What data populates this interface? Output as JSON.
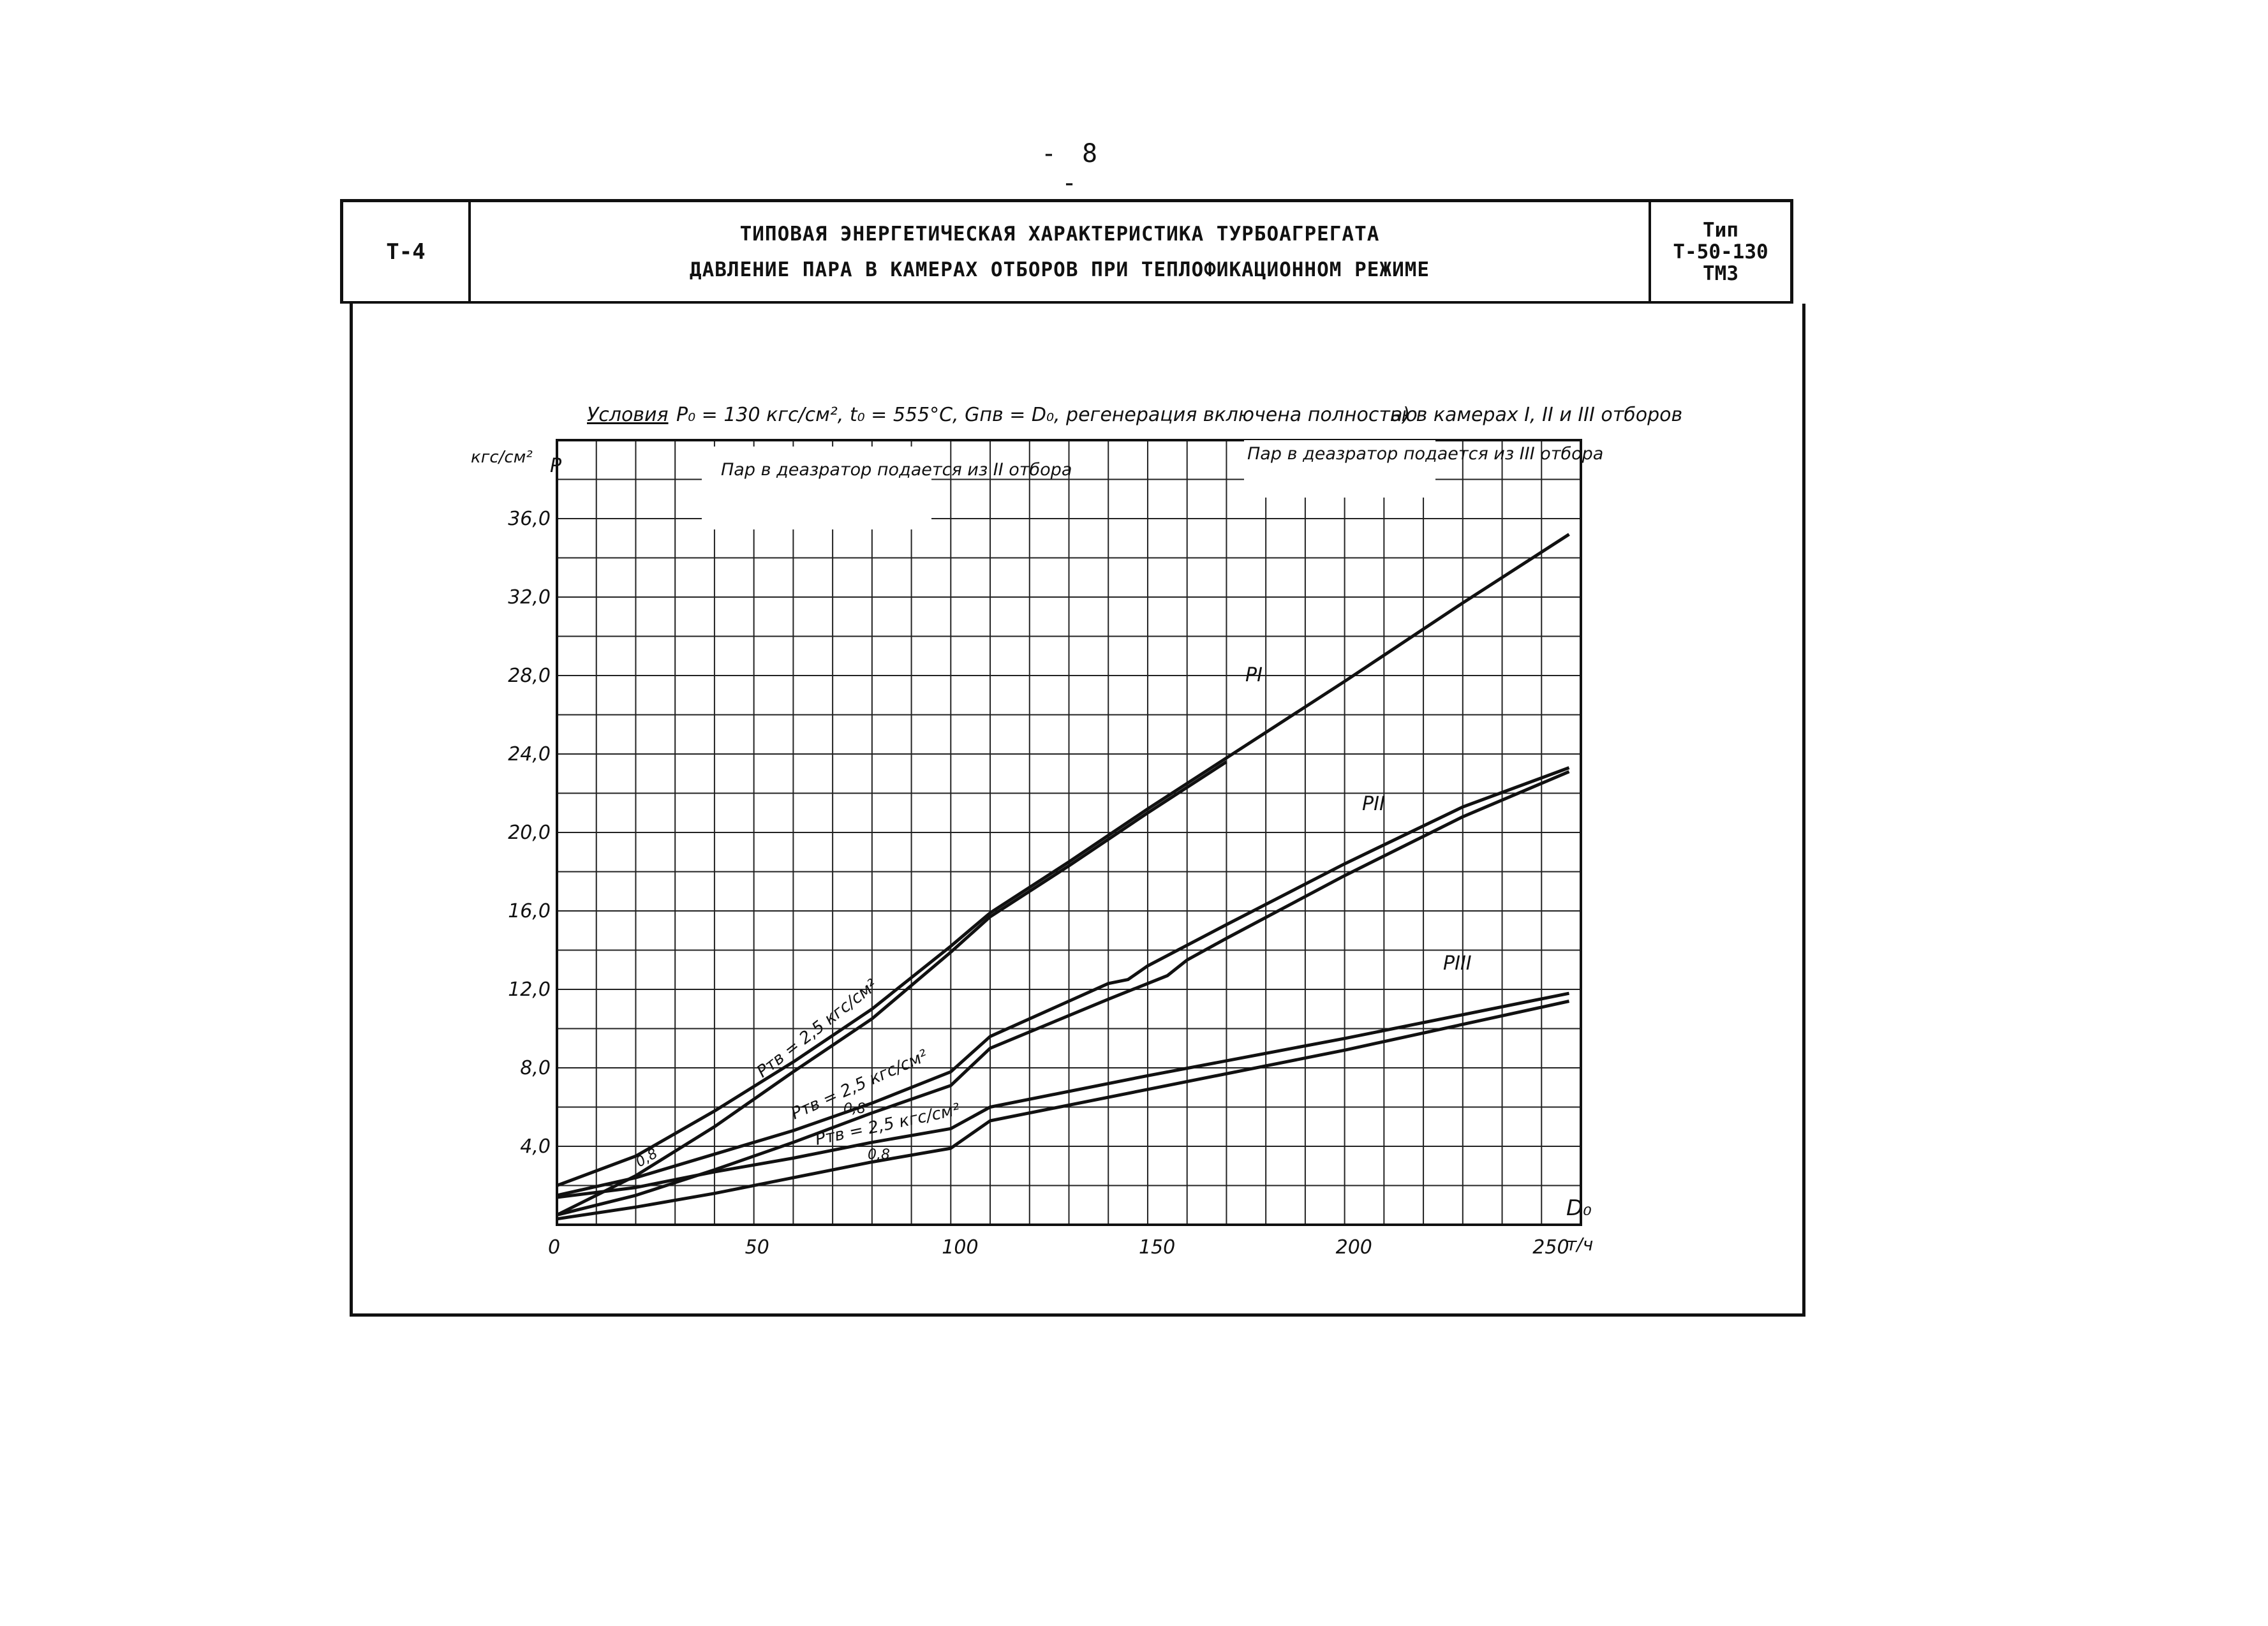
{
  "page": {
    "number": "- 8 -"
  },
  "header": {
    "code": "Т-4",
    "title_line1": "ТИПОВАЯ ЭНЕРГЕТИЧЕСКАЯ ХАРАКТЕРИСТИКА ТУРБОАГРЕГАТА",
    "title_line2": "ДАВЛЕНИЕ ПАРА В КАМЕРАХ ОТБОРОВ ПРИ ТЕПЛОФИКАЦИОННОМ РЕЖИМЕ",
    "type_label": "Тип",
    "type_model": "Т-50-130",
    "type_plant": "ТМЗ"
  },
  "chart_data": {
    "type": "line",
    "conditions_label": "Условия",
    "conditions_text": "P₀ = 130 кгс/см², t₀ = 555°С, Gпв = D₀, регенерация включена полностью",
    "panel_label": "а) в камерах I, II и III отборов",
    "ylabel": "P",
    "yunit": "кгс/см²",
    "xlabel": "D₀",
    "xunit": "т/ч",
    "xlim": [
      0,
      260
    ],
    "ylim": [
      0,
      40
    ],
    "x_ticks": [
      "0",
      "50",
      "100",
      "150",
      "200",
      "250"
    ],
    "x_tick_values": [
      0,
      50,
      100,
      150,
      200,
      250
    ],
    "y_ticks": [
      "4,0",
      "8,0",
      "12,0",
      "16,0",
      "20,0",
      "24,0",
      "28,0",
      "32,0",
      "36,0"
    ],
    "y_tick_values": [
      4,
      8,
      12,
      16,
      20,
      24,
      28,
      32,
      36
    ],
    "grid": true,
    "annotations": [
      {
        "text": "Пар в деазратор подается из II отбора",
        "range": [
          0,
          100
        ]
      },
      {
        "text": "Пар в деазратор подается из III отбора",
        "range": [
          140,
          257
        ]
      }
    ],
    "series_labels": {
      "p1": "PI",
      "p2": "PII",
      "p3": "PIII",
      "ptv_25_a": "Pтв = 2,5 кгс/см²",
      "ptv_25_b": "Pтв = 2,5 кгс/см²",
      "ptv_25_c": "Pтв = 2,5 кгс/см²",
      "ptv_08_a": "0,8",
      "ptv_08_b": "0,8",
      "ptv_08_c": "0,8"
    },
    "series": [
      {
        "key": "p1_upper",
        "x": [
          0,
          20,
          40,
          60,
          80,
          100,
          110,
          130,
          150,
          170,
          200,
          230,
          257
        ],
        "y": [
          2.0,
          3.5,
          5.8,
          8.3,
          11.0,
          14.2,
          15.9,
          18.5,
          21.2,
          23.8,
          27.7,
          31.7,
          35.2
        ]
      },
      {
        "key": "p1_lower",
        "x": [
          0,
          20,
          40,
          60,
          80,
          100,
          110,
          130,
          150,
          170
        ],
        "y": [
          0.5,
          2.5,
          5.0,
          7.8,
          10.5,
          13.9,
          15.7,
          18.3,
          21.0,
          23.6
        ]
      },
      {
        "key": "p2_upper",
        "x": [
          0,
          20,
          40,
          60,
          80,
          100,
          110,
          140,
          145,
          150,
          170,
          200,
          230,
          257
        ],
        "y": [
          1.5,
          2.4,
          3.6,
          4.8,
          6.2,
          7.8,
          9.6,
          12.3,
          12.5,
          13.2,
          15.3,
          18.4,
          21.3,
          23.3
        ]
      },
      {
        "key": "p2_lower",
        "x": [
          0,
          20,
          40,
          60,
          80,
          100,
          110,
          140,
          155,
          160,
          170,
          200,
          230,
          257
        ],
        "y": [
          0.5,
          1.5,
          2.8,
          4.2,
          5.7,
          7.1,
          9.0,
          11.5,
          12.7,
          13.5,
          14.6,
          17.8,
          20.8,
          23.1
        ]
      },
      {
        "key": "p3_upper",
        "x": [
          0,
          20,
          40,
          60,
          80,
          100,
          110,
          150,
          200,
          257
        ],
        "y": [
          1.4,
          1.9,
          2.7,
          3.4,
          4.2,
          4.9,
          6.0,
          7.6,
          9.5,
          11.8
        ]
      },
      {
        "key": "p3_lower",
        "x": [
          0,
          20,
          40,
          60,
          80,
          100,
          110,
          150,
          200,
          257
        ],
        "y": [
          0.3,
          0.9,
          1.6,
          2.4,
          3.2,
          3.9,
          5.3,
          6.9,
          8.9,
          11.4
        ]
      }
    ]
  }
}
